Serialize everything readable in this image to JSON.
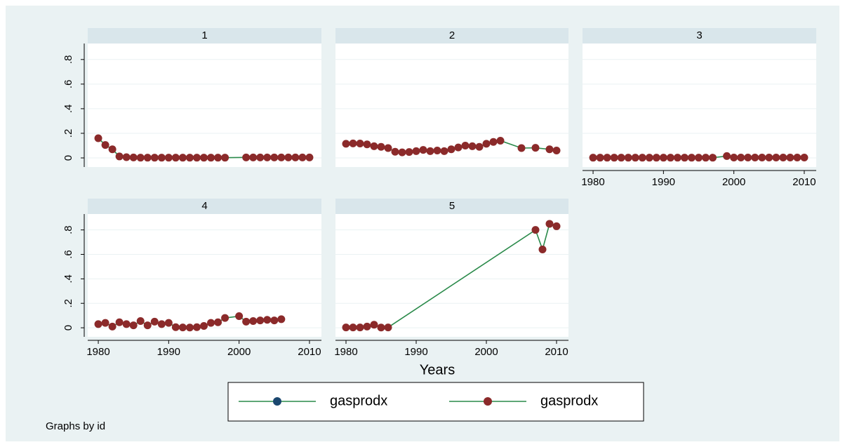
{
  "chart_data": [
    {
      "type": "line",
      "title": "1",
      "y_axis": true,
      "x": [
        1980,
        1981,
        1982,
        1983,
        1984,
        1985,
        1986,
        1987,
        1988,
        1989,
        1990,
        1991,
        1992,
        1993,
        1994,
        1995,
        1996,
        1997,
        1998,
        2001,
        2002,
        2003,
        2004,
        2005,
        2006,
        2007,
        2008,
        2009,
        2010
      ],
      "series": [
        {
          "color": "#2a8a4a",
          "marker_color": "#8b2a2a",
          "values": [
            0.16,
            0.105,
            0.07,
            0.012,
            0.006,
            0.004,
            0.002,
            0.002,
            0.002,
            0.002,
            0.002,
            0.002,
            0.002,
            0.002,
            0.002,
            0.002,
            0.002,
            0.002,
            0.002,
            0.004,
            0.004,
            0.004,
            0.004,
            0.004,
            0.004,
            0.004,
            0.004,
            0.004,
            0.004
          ]
        }
      ],
      "xlim": [
        1978.5,
        2011.7
      ],
      "ylim": [
        -0.074,
        0.93
      ],
      "yticks": [
        0,
        {
          "value": 0.2,
          "label": ".2"
        },
        {
          "value": 0.4,
          "label": ".4"
        },
        {
          "value": 0.6,
          "label": ".6"
        },
        {
          "value": 0.8,
          "label": ".8"
        }
      ],
      "grid": true
    },
    {
      "type": "line",
      "title": "2",
      "x": [
        1980,
        1981,
        1982,
        1983,
        1984,
        1985,
        1986,
        1987,
        1988,
        1989,
        1990,
        1991,
        1992,
        1993,
        1994,
        1995,
        1996,
        1997,
        1998,
        1999,
        2000,
        2001,
        2002,
        2005,
        2007,
        2009,
        2010
      ],
      "series": [
        {
          "color": "#2a8a4a",
          "marker_color": "#8b2a2a",
          "values": [
            0.115,
            0.118,
            0.117,
            0.11,
            0.095,
            0.09,
            0.08,
            0.05,
            0.045,
            0.048,
            0.055,
            0.065,
            0.055,
            0.06,
            0.055,
            0.07,
            0.085,
            0.1,
            0.095,
            0.09,
            0.115,
            0.13,
            0.14,
            0.08,
            0.082,
            0.07,
            0.06
          ]
        }
      ],
      "xlim": [
        1978.5,
        2011.7
      ],
      "ylim": [
        -0.074,
        0.93
      ],
      "yticks": [
        0,
        {
          "value": 0.2,
          "label": ".2"
        },
        {
          "value": 0.4,
          "label": ".4"
        },
        {
          "value": 0.6,
          "label": ".6"
        },
        {
          "value": 0.8,
          "label": ".8"
        }
      ],
      "grid": true
    },
    {
      "type": "line",
      "title": "3",
      "x": [
        1980,
        1981,
        1982,
        1983,
        1984,
        1985,
        1986,
        1987,
        1988,
        1989,
        1990,
        1991,
        1992,
        1993,
        1994,
        1995,
        1996,
        1997,
        1999,
        2000,
        2001,
        2002,
        2003,
        2004,
        2005,
        2006,
        2007,
        2008,
        2009,
        2010
      ],
      "series": [
        {
          "color": "#2a8a4a",
          "marker_color": "#8b2a2a",
          "values": [
            0.002,
            0.002,
            0.002,
            0.002,
            0.002,
            0.002,
            0.002,
            0.002,
            0.002,
            0.002,
            0.002,
            0.002,
            0.002,
            0.002,
            0.002,
            0.002,
            0.002,
            0.002,
            0.015,
            0.003,
            0.003,
            0.003,
            0.003,
            0.003,
            0.003,
            0.003,
            0.003,
            0.003,
            0.003,
            0.003
          ]
        }
      ],
      "xlim": [
        1978.5,
        2011.7
      ],
      "ylim": [
        -0.074,
        0.93
      ],
      "xticks": [
        1980,
        1990,
        2000,
        2010
      ],
      "yticks": [
        0,
        {
          "value": 0.2,
          "label": ".2"
        },
        {
          "value": 0.4,
          "label": ".4"
        },
        {
          "value": 0.6,
          "label": ".6"
        },
        {
          "value": 0.8,
          "label": ".8"
        }
      ],
      "grid": true
    },
    {
      "type": "line",
      "title": "4",
      "y_axis": true,
      "x": [
        1980,
        1981,
        1982,
        1983,
        1984,
        1985,
        1986,
        1987,
        1988,
        1989,
        1990,
        1991,
        1992,
        1993,
        1994,
        1995,
        1996,
        1997,
        1998,
        2000,
        2001,
        2002,
        2003,
        2004,
        2005,
        2006
      ],
      "series": [
        {
          "color": "#2a8a4a",
          "marker_color": "#8b2a2a",
          "values": [
            0.03,
            0.04,
            0.01,
            0.045,
            0.03,
            0.02,
            0.055,
            0.02,
            0.05,
            0.03,
            0.04,
            0.005,
            0.003,
            0.002,
            0.005,
            0.015,
            0.04,
            0.045,
            0.08,
            0.095,
            0.05,
            0.055,
            0.06,
            0.065,
            0.06,
            0.07
          ]
        }
      ],
      "xlim": [
        1978.5,
        2011.7
      ],
      "ylim": [
        -0.074,
        0.93
      ],
      "xticks": [
        1980,
        1990,
        2000,
        2010
      ],
      "yticks": [
        0,
        {
          "value": 0.2,
          "label": ".2"
        },
        {
          "value": 0.4,
          "label": ".4"
        },
        {
          "value": 0.6,
          "label": ".6"
        },
        {
          "value": 0.8,
          "label": ".8"
        }
      ],
      "grid": true
    },
    {
      "type": "line",
      "title": "5",
      "x": [
        1980,
        1981,
        1982,
        1983,
        1984,
        1985,
        1986,
        2007,
        2008,
        2009,
        2010
      ],
      "series": [
        {
          "color": "#2a8a4a",
          "marker_color": "#8b2a2a",
          "values": [
            0.003,
            0.003,
            0.003,
            0.01,
            0.025,
            0.002,
            0.003,
            0.8,
            0.64,
            0.85,
            0.83
          ]
        }
      ],
      "xlim": [
        1978.5,
        2011.7
      ],
      "ylim": [
        -0.074,
        0.93
      ],
      "xticks": [
        1980,
        1990,
        2000,
        2010
      ],
      "yticks": [
        0,
        {
          "value": 0.2,
          "label": ".2"
        },
        {
          "value": 0.4,
          "label": ".4"
        },
        {
          "value": 0.6,
          "label": ".6"
        },
        {
          "value": 0.8,
          "label": ".8"
        }
      ],
      "grid": true
    }
  ],
  "xlabel": "Years",
  "legend": [
    {
      "label": "gasprodx",
      "marker_color": "#1a476f",
      "line_color": "#2a8a4a"
    },
    {
      "label": "gasprodx",
      "marker_color": "#8b2a2a",
      "line_color": "#2a8a4a"
    }
  ],
  "note": "Graphs by id"
}
